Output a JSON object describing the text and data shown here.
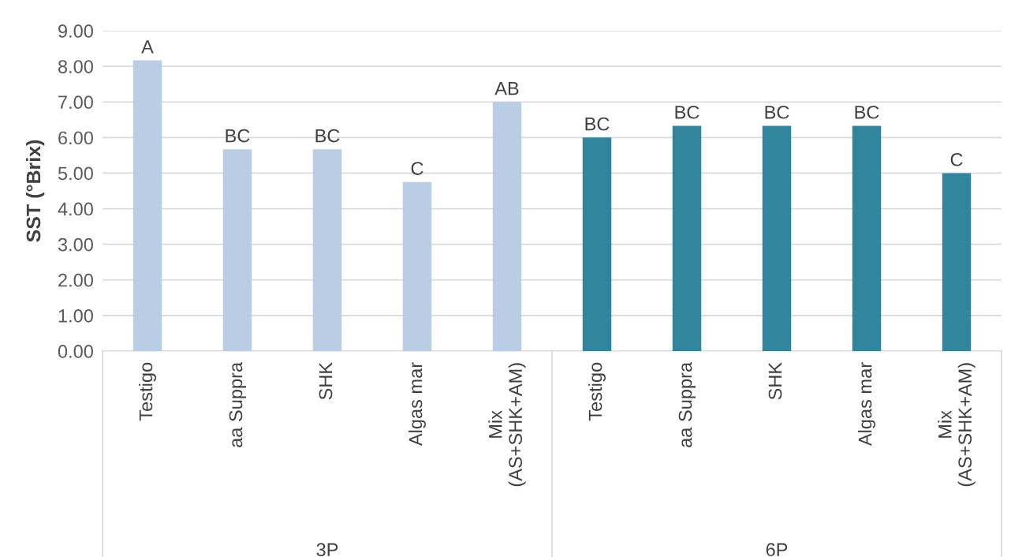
{
  "chart_data": {
    "type": "bar",
    "ylabel": "SST (°Brix)",
    "categories": [
      "Testigo",
      "aa Suppra",
      "SHK",
      "Algas mar",
      "Mix\n(AS+SHK+AM)",
      "Testigo",
      "aa Suppra",
      "SHK",
      "Algas mar",
      "Mix\n(AS+SHK+AM)"
    ],
    "values": [
      8.17,
      5.67,
      5.67,
      4.75,
      7.0,
      6.0,
      6.33,
      6.33,
      6.33,
      5.0
    ],
    "colors": [
      "#b9cde5",
      "#b9cde5",
      "#b9cde5",
      "#b9cde5",
      "#b9cde5",
      "#31859c",
      "#31859c",
      "#31859c",
      "#31859c",
      "#31859c"
    ],
    "value_labels": [
      "A",
      "BC",
      "BC",
      "C",
      "AB",
      "BC",
      "BC",
      "BC",
      "BC",
      "C"
    ],
    "annotations": [
      "3P",
      "6P"
    ],
    "ylim": [
      0,
      9
    ],
    "yticks": [
      {
        "value": 0,
        "label": "0.00"
      },
      {
        "value": 1,
        "label": "1.00"
      },
      {
        "value": 2,
        "label": "2.00"
      },
      {
        "value": 3,
        "label": "3.00"
      },
      {
        "value": 4,
        "label": "4.00"
      },
      {
        "value": 5,
        "label": "5.00"
      },
      {
        "value": 6,
        "label": "6.00"
      },
      {
        "value": 7,
        "label": "7.00"
      },
      {
        "value": 8,
        "label": "8.00"
      },
      {
        "value": 9,
        "label": "9.00"
      }
    ],
    "grid": "y",
    "legend": false
  }
}
